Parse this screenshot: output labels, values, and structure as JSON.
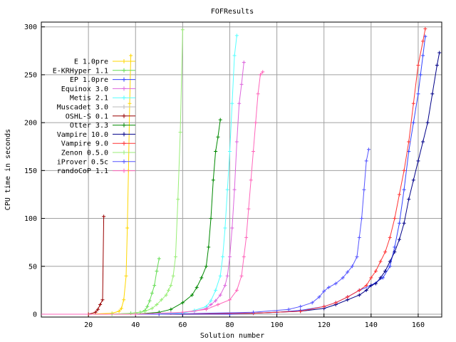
{
  "chart_data": {
    "type": "line",
    "title": "FOFResults",
    "xlabel": "Solution number",
    "ylabel": "CPU time in seconds",
    "xlim": [
      0,
      170
    ],
    "ylim": [
      -3,
      305
    ],
    "x_ticks": [
      20,
      40,
      60,
      80,
      100,
      120,
      140,
      160
    ],
    "y_ticks": [
      0,
      50,
      100,
      150,
      200,
      250,
      300
    ],
    "grid": true,
    "legend_position": "top-left",
    "series": [
      {
        "name": "E 1.0pre",
        "color": "#ffd700",
        "x": [
          0,
          20,
          30,
          33,
          34,
          35,
          36,
          36.5,
          37,
          37.5,
          38
        ],
        "y": [
          0,
          0,
          1,
          3,
          6,
          15,
          40,
          90,
          150,
          220,
          270
        ]
      },
      {
        "name": "E-KRHyper 1.1",
        "color": "#66dd55",
        "x": [
          0,
          30,
          38,
          42,
          44,
          45,
          46,
          47,
          48,
          49,
          50
        ],
        "y": [
          0,
          0,
          1,
          2,
          4,
          8,
          14,
          22,
          30,
          45,
          58
        ]
      },
      {
        "name": "EP 1.0pre",
        "color": "#3344ff",
        "x": [
          0,
          50,
          80,
          100,
          110,
          120,
          125,
          130,
          135,
          140,
          145,
          148,
          150,
          152,
          154,
          156,
          158,
          160,
          161,
          162,
          163
        ],
        "y": [
          0,
          0,
          0,
          2,
          4,
          8,
          12,
          18,
          25,
          30,
          38,
          50,
          70,
          95,
          130,
          170,
          200,
          230,
          250,
          270,
          290
        ]
      },
      {
        "name": "Equinox 3.0",
        "color": "#dd66dd",
        "x": [
          0,
          40,
          55,
          65,
          70,
          72,
          74,
          76,
          78,
          79,
          80,
          81,
          82,
          83,
          84,
          85,
          86
        ],
        "y": [
          0,
          0,
          1,
          3,
          6,
          10,
          14,
          20,
          30,
          40,
          60,
          90,
          130,
          180,
          220,
          240,
          263
        ]
      },
      {
        "name": "Metis 2.1",
        "color": "#55ffff",
        "x": [
          0,
          40,
          60,
          65,
          70,
          72,
          74,
          76,
          77,
          78,
          79,
          80,
          81,
          82,
          83
        ],
        "y": [
          0,
          0,
          1,
          4,
          8,
          14,
          25,
          40,
          60,
          90,
          130,
          170,
          220,
          270,
          291
        ]
      },
      {
        "name": "Muscadet 3.0",
        "color": "#bbbbbb",
        "x": [],
        "y": []
      },
      {
        "name": "OSHL-S 0.1",
        "color": "#990000",
        "x": [
          0,
          20,
          23,
          24,
          25,
          26,
          26.5
        ],
        "y": [
          0,
          0,
          2,
          5,
          10,
          15,
          102
        ]
      },
      {
        "name": "Otter 3.3",
        "color": "#008800",
        "x": [
          0,
          40,
          50,
          55,
          60,
          64,
          66,
          68,
          70,
          71,
          72,
          73,
          74,
          75,
          76
        ],
        "y": [
          0,
          0,
          2,
          5,
          12,
          20,
          28,
          38,
          50,
          70,
          100,
          140,
          170,
          185,
          203
        ]
      },
      {
        "name": "Vampire 10.0",
        "color": "#000088",
        "x": [
          0,
          60,
          90,
          110,
          120,
          125,
          130,
          135,
          138,
          140,
          142,
          144,
          146,
          148,
          150,
          152,
          154,
          156,
          158,
          160,
          162,
          164,
          166,
          168,
          169
        ],
        "y": [
          0,
          0,
          1,
          3,
          6,
          10,
          15,
          20,
          25,
          30,
          32,
          38,
          45,
          55,
          65,
          78,
          95,
          120,
          140,
          160,
          180,
          200,
          230,
          260,
          273
        ]
      },
      {
        "name": "Vampire 9.0",
        "color": "#ff3333",
        "x": [
          0,
          50,
          90,
          110,
          120,
          125,
          130,
          135,
          138,
          140,
          142,
          144,
          146,
          148,
          150,
          152,
          154,
          156,
          158,
          160,
          162,
          163
        ],
        "y": [
          0,
          0,
          1,
          3,
          8,
          12,
          18,
          25,
          30,
          38,
          45,
          55,
          65,
          80,
          100,
          125,
          150,
          180,
          220,
          260,
          285,
          298
        ]
      },
      {
        "name": "Zenon 0.5.0",
        "color": "#99ee77",
        "x": [
          0,
          30,
          40,
          44,
          47,
          49,
          51,
          53,
          54,
          55,
          56,
          57,
          58,
          59,
          60
        ],
        "y": [
          0,
          0,
          1,
          3,
          6,
          10,
          15,
          20,
          25,
          30,
          40,
          60,
          120,
          190,
          297
        ]
      },
      {
        "name": "iProver 0.5c",
        "color": "#5555ff",
        "x": [
          0,
          50,
          90,
          105,
          110,
          115,
          118,
          120,
          122,
          125,
          128,
          130,
          132,
          134,
          135,
          136,
          137,
          138,
          139
        ],
        "y": [
          0,
          0,
          2,
          5,
          8,
          12,
          18,
          24,
          28,
          32,
          38,
          44,
          50,
          60,
          80,
          100,
          130,
          160,
          172
        ]
      },
      {
        "name": "randoCoP 1.1",
        "color": "#ff66bb",
        "x": [
          0,
          40,
          60,
          70,
          75,
          80,
          83,
          85,
          86,
          87,
          88,
          89,
          90,
          91,
          92,
          93,
          94
        ],
        "y": [
          0,
          0,
          2,
          5,
          10,
          15,
          25,
          40,
          60,
          80,
          110,
          140,
          170,
          200,
          230,
          250,
          253
        ]
      }
    ]
  }
}
